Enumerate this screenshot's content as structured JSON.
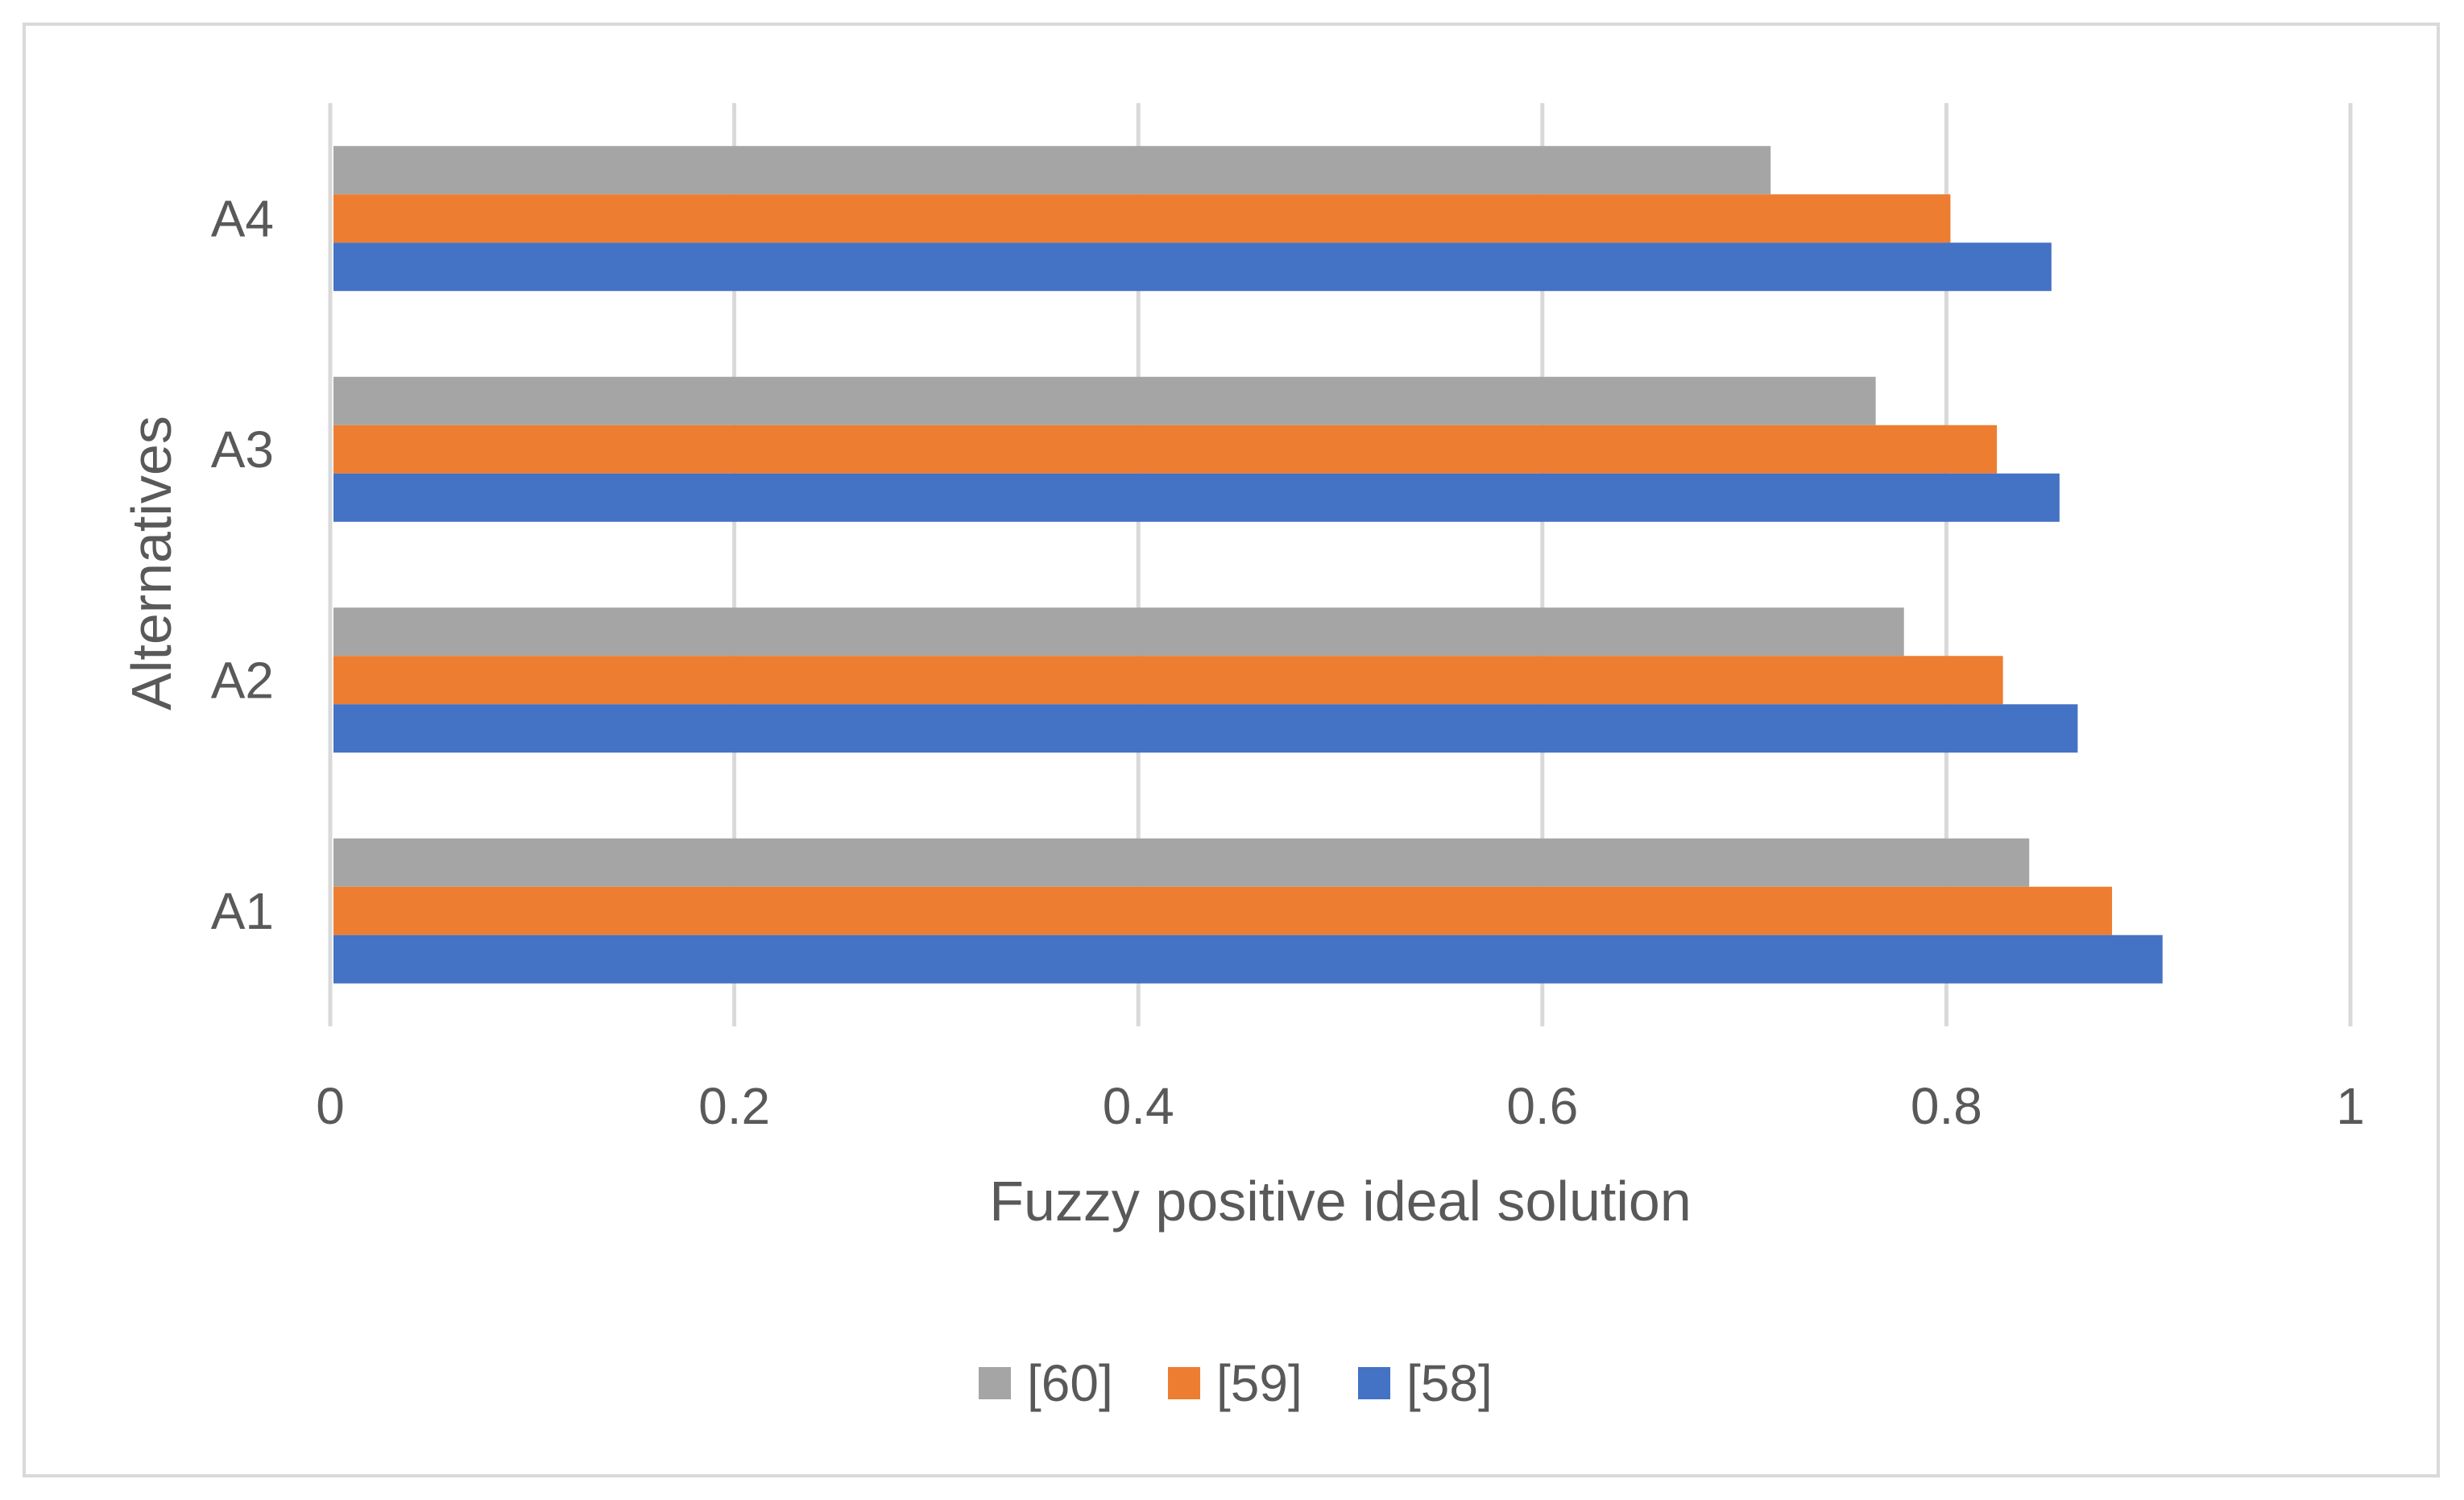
{
  "chart_data": {
    "type": "bar",
    "orientation": "horizontal",
    "categories": [
      "A1",
      "A2",
      "A3",
      "A4"
    ],
    "series": [
      {
        "name": "[58]",
        "color": "#4472c4",
        "values": [
          0.907,
          0.865,
          0.856,
          0.852
        ]
      },
      {
        "name": "[59]",
        "color": "#ed7d31",
        "values": [
          0.882,
          0.828,
          0.825,
          0.802
        ]
      },
      {
        "name": "[60]",
        "color": "#a5a5a5",
        "values": [
          0.841,
          0.779,
          0.765,
          0.713
        ]
      }
    ],
    "legend_order": [
      "[60]",
      "[59]",
      "[58]"
    ],
    "title": "",
    "xlabel": "Fuzzy positive ideal solution",
    "ylabel": "Alternatives",
    "xlim": [
      0,
      1
    ],
    "xticks": [
      0,
      0.2,
      0.4,
      0.6,
      0.8,
      1
    ],
    "xtick_labels": [
      "0",
      "0.2",
      "0.4",
      "0.6",
      "0.8",
      "1"
    ],
    "grid": true,
    "legend_position": "bottom"
  }
}
